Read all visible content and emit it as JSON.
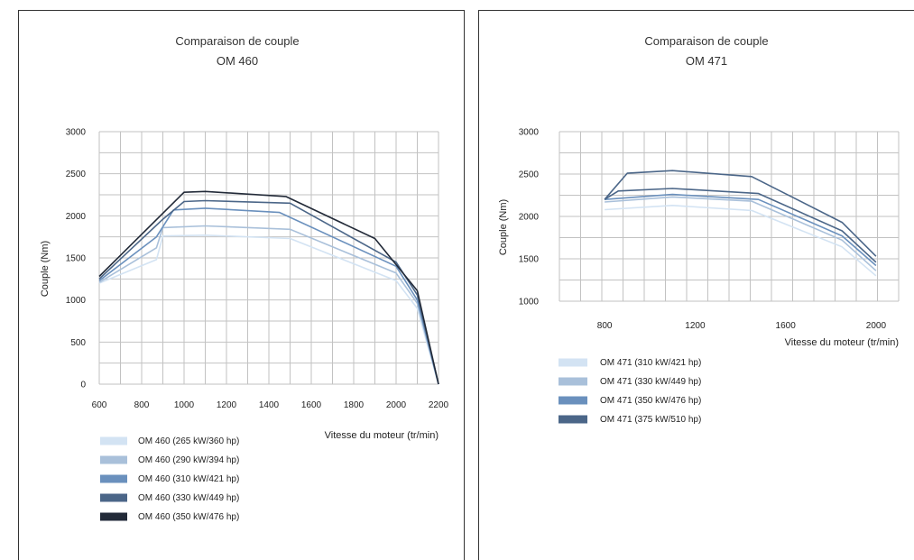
{
  "colors": {
    "s1": "#d3e3f3",
    "s2": "#a9c0da",
    "s3": "#6a90bd",
    "s4": "#4b6688",
    "s5": "#222a38",
    "grid": "#c2c2c2",
    "border": "#333333"
  },
  "chart_data": [
    {
      "type": "line",
      "title": "Comparaison de couple",
      "subtitle": "OM 460",
      "xlabel": "Vitesse du moteur (tr/min)",
      "ylabel": "Couple (Nm)",
      "xlim": [
        600,
        2200
      ],
      "ylim": [
        0,
        3000
      ],
      "xticks": [
        600,
        800,
        1000,
        1200,
        1400,
        1600,
        1800,
        2000,
        2200
      ],
      "yticks": [
        0,
        500,
        1000,
        1500,
        2000,
        2500,
        3000
      ],
      "grid": true,
      "legend": "bottom",
      "series": [
        {
          "name": "OM 460 (265 kW/360 hp)",
          "color": "#d3e3f3",
          "points": [
            [
              600,
              1200
            ],
            [
              870,
              1480
            ],
            [
              900,
              1760
            ],
            [
              1100,
              1770
            ],
            [
              1500,
              1730
            ],
            [
              2000,
              1230
            ],
            [
              2100,
              900
            ],
            [
              2200,
              0
            ]
          ]
        },
        {
          "name": "OM 460 (290 kW/394 hp)",
          "color": "#a9c0da",
          "points": [
            [
              600,
              1210
            ],
            [
              870,
              1620
            ],
            [
              900,
              1860
            ],
            [
              1100,
              1880
            ],
            [
              1500,
              1840
            ],
            [
              2000,
              1320
            ],
            [
              2100,
              960
            ],
            [
              2200,
              0
            ]
          ]
        },
        {
          "name": "OM 460 (310 kW/421 hp)",
          "color": "#6a90bd",
          "points": [
            [
              600,
              1230
            ],
            [
              870,
              1750
            ],
            [
              950,
              2070
            ],
            [
              1100,
              2090
            ],
            [
              1450,
              2040
            ],
            [
              2000,
              1400
            ],
            [
              2100,
              1000
            ],
            [
              2200,
              0
            ]
          ]
        },
        {
          "name": "OM 460 (330 kW/449 hp)",
          "color": "#4b6688",
          "points": [
            [
              600,
              1250
            ],
            [
              900,
              1960
            ],
            [
              1000,
              2170
            ],
            [
              1100,
              2180
            ],
            [
              1500,
              2150
            ],
            [
              2000,
              1450
            ],
            [
              2100,
              1060
            ],
            [
              2200,
              0
            ]
          ]
        },
        {
          "name": "OM 460 (350 kW/476 hp)",
          "color": "#222a38",
          "points": [
            [
              600,
              1280
            ],
            [
              1000,
              2280
            ],
            [
              1100,
              2290
            ],
            [
              1480,
              2230
            ],
            [
              1900,
              1730
            ],
            [
              2100,
              1110
            ],
            [
              2200,
              0
            ]
          ]
        }
      ]
    },
    {
      "type": "line",
      "title": "Comparaison de couple",
      "subtitle": "OM 471",
      "xlabel": "Vitesse du moteur (tr/min)",
      "ylabel": "Couple (Nm)",
      "xlim": [
        600,
        2100
      ],
      "ylim": [
        1000,
        3000
      ],
      "xticks": [
        800,
        1200,
        1600,
        2000
      ],
      "yticks": [
        1000,
        1500,
        2000,
        2500,
        3000
      ],
      "grid": true,
      "legend": "bottom",
      "series": [
        {
          "name": "OM 471 (310 kW/421 hp)",
          "color": "#d3e3f3",
          "points": [
            [
              800,
              2080
            ],
            [
              1100,
              2130
            ],
            [
              1450,
              2070
            ],
            [
              1850,
              1640
            ],
            [
              2000,
              1300
            ]
          ]
        },
        {
          "name": "OM 471 (330 kW/449 hp)",
          "color": "#a9c0da",
          "points": [
            [
              800,
              2170
            ],
            [
              1100,
              2230
            ],
            [
              1450,
              2180
            ],
            [
              1850,
              1720
            ],
            [
              2000,
              1360
            ]
          ]
        },
        {
          "name": "OM 471 (350 kW/476 hp)",
          "color": "#6a90bd",
          "points": [
            [
              800,
              2200
            ],
            [
              1100,
              2260
            ],
            [
              1480,
              2200
            ],
            [
              1850,
              1770
            ],
            [
              2000,
              1420
            ]
          ]
        },
        {
          "name": "OM 471 (375 kW/510 hp)",
          "color": "#4b6688",
          "points": [
            [
              800,
              2200
            ],
            [
              860,
              2300
            ],
            [
              1100,
              2330
            ],
            [
              1480,
              2270
            ],
            [
              1850,
              1830
            ],
            [
              2000,
              1460
            ]
          ]
        },
        {
          "name": "",
          "color": "#4b6688",
          "points": [
            [
              800,
              2200
            ],
            [
              900,
              2510
            ],
            [
              1100,
              2540
            ],
            [
              1450,
              2470
            ],
            [
              1850,
              1930
            ],
            [
              2000,
              1530
            ]
          ]
        }
      ]
    }
  ]
}
